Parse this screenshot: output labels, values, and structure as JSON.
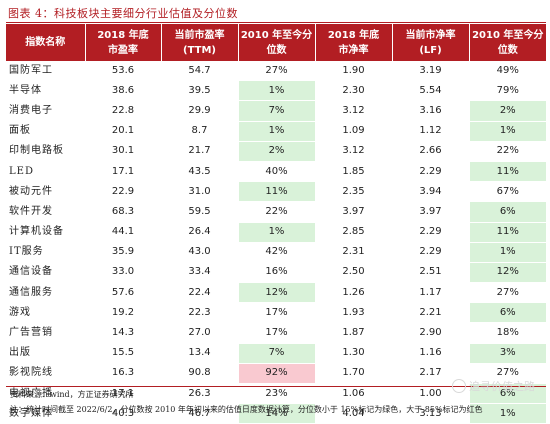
{
  "figure": {
    "title": "图表 4：科技板块主要细分行业估值及分位数"
  },
  "table": {
    "headers": [
      [
        "指数名称"
      ],
      [
        "2018 年底",
        "市盈率"
      ],
      [
        "当前市盈率",
        "(TTM)"
      ],
      [
        "2010 年至今分",
        "位数"
      ],
      [
        "2018 年底",
        "市净率"
      ],
      [
        "当前市净率",
        "(LF)"
      ],
      [
        "2010 年至今分",
        "位数"
      ]
    ],
    "rows": [
      {
        "name": "国防军工",
        "pe2018": "53.6",
        "pe_now": "54.7",
        "pe_pct": "27%",
        "pb2018": "1.90",
        "pb_now": "3.19",
        "pb_pct": "49%"
      },
      {
        "name": "半导体",
        "pe2018": "38.6",
        "pe_now": "39.5",
        "pe_pct": "1%",
        "pb2018": "2.30",
        "pb_now": "5.54",
        "pb_pct": "79%"
      },
      {
        "name": "消费电子",
        "pe2018": "22.8",
        "pe_now": "29.9",
        "pe_pct": "7%",
        "pb2018": "3.12",
        "pb_now": "3.16",
        "pb_pct": "2%"
      },
      {
        "name": "面板",
        "pe2018": "20.1",
        "pe_now": "8.7",
        "pe_pct": "1%",
        "pb2018": "1.09",
        "pb_now": "1.12",
        "pb_pct": "1%"
      },
      {
        "name": "印制电路板",
        "pe2018": "30.1",
        "pe_now": "21.7",
        "pe_pct": "2%",
        "pb2018": "3.12",
        "pb_now": "2.66",
        "pb_pct": "22%"
      },
      {
        "name": "LED",
        "pe2018": "17.1",
        "pe_now": "43.5",
        "pe_pct": "40%",
        "pb2018": "1.85",
        "pb_now": "2.29",
        "pb_pct": "11%"
      },
      {
        "name": "被动元件",
        "pe2018": "22.9",
        "pe_now": "31.0",
        "pe_pct": "11%",
        "pb2018": "2.35",
        "pb_now": "3.94",
        "pb_pct": "67%"
      },
      {
        "name": "软件开发",
        "pe2018": "68.3",
        "pe_now": "59.5",
        "pe_pct": "22%",
        "pb2018": "3.97",
        "pb_now": "3.97",
        "pb_pct": "6%"
      },
      {
        "name": "计算机设备",
        "pe2018": "44.1",
        "pe_now": "26.4",
        "pe_pct": "1%",
        "pb2018": "2.85",
        "pb_now": "2.29",
        "pb_pct": "11%"
      },
      {
        "name": "IT服务",
        "pe2018": "35.9",
        "pe_now": "43.0",
        "pe_pct": "42%",
        "pb2018": "2.31",
        "pb_now": "2.29",
        "pb_pct": "1%"
      },
      {
        "name": "通信设备",
        "pe2018": "33.0",
        "pe_now": "33.4",
        "pe_pct": "16%",
        "pb2018": "2.50",
        "pb_now": "2.51",
        "pb_pct": "12%"
      },
      {
        "name": "通信服务",
        "pe2018": "57.6",
        "pe_now": "22.4",
        "pe_pct": "12%",
        "pb2018": "1.26",
        "pb_now": "1.17",
        "pb_pct": "27%"
      },
      {
        "name": "游戏",
        "pe2018": "19.2",
        "pe_now": "22.3",
        "pe_pct": "17%",
        "pb2018": "1.93",
        "pb_now": "2.21",
        "pb_pct": "6%"
      },
      {
        "name": "广告营销",
        "pe2018": "14.3",
        "pe_now": "27.0",
        "pe_pct": "17%",
        "pb2018": "1.87",
        "pb_now": "2.90",
        "pb_pct": "18%"
      },
      {
        "name": "出版",
        "pe2018": "15.5",
        "pe_now": "13.4",
        "pe_pct": "7%",
        "pb2018": "1.30",
        "pb_now": "1.16",
        "pb_pct": "3%"
      },
      {
        "name": "影视院线",
        "pe2018": "16.3",
        "pe_now": "90.8",
        "pe_pct": "92%",
        "pb2018": "1.70",
        "pb_now": "2.17",
        "pb_pct": "27%"
      },
      {
        "name": "电视广播",
        "pe2018": "17.1",
        "pe_now": "26.3",
        "pe_pct": "23%",
        "pb2018": "1.06",
        "pb_now": "1.00",
        "pb_pct": "6%"
      },
      {
        "name": "数字媒体",
        "pe2018": "40.3",
        "pe_now": "46.7",
        "pe_pct": "14%",
        "pb2018": "4.04",
        "pb_now": "3.13",
        "pb_pct": "1%"
      }
    ]
  },
  "footer": {
    "source": "资料来源：wind，方正证券研究所",
    "note": "注：统计时间截至 2022/6/2，分位数按 2010 年年初以来的估值日度数据计算，分位数小于 15%标记为绿色，大于 85%标记为红色",
    "watermark": "追寻价值之路"
  },
  "colors": {
    "header_bg": "#b21e23",
    "low_highlight": "#d9f2d9",
    "high_highlight": "#f9c9d0",
    "title_color": "#b21e23"
  },
  "thresholds": {
    "low_pct": 15,
    "high_pct": 85
  }
}
